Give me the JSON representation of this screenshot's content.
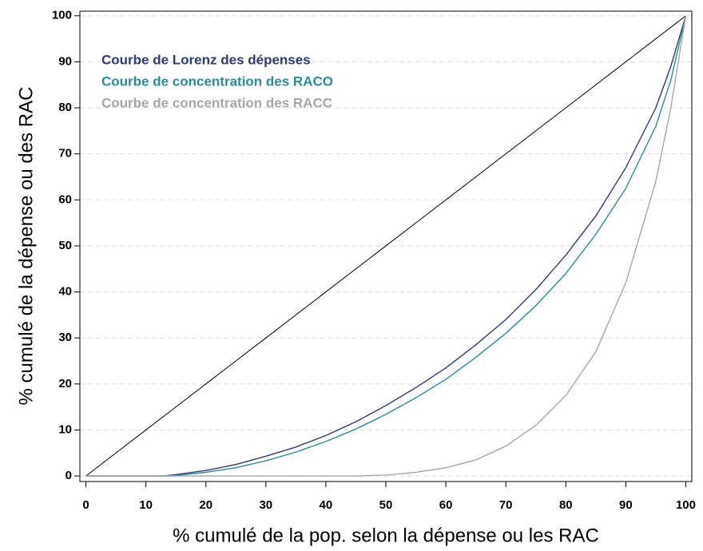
{
  "chart_data": {
    "type": "line",
    "xlabel": "% cumulé de la pop. selon la dépense ou les RAC",
    "ylabel": "% cumulé de la dépense ou des RAC",
    "x": [
      0,
      5,
      10,
      13,
      15,
      20,
      25,
      30,
      35,
      40,
      45,
      50,
      55,
      60,
      65,
      70,
      75,
      80,
      85,
      90,
      95,
      97.5,
      100
    ],
    "series": [
      {
        "color": "#000000",
        "values": [
          0,
          5,
          10,
          13,
          15,
          20,
          25,
          30,
          35,
          40,
          45,
          50,
          55,
          60,
          65,
          70,
          75,
          80,
          85,
          90,
          95,
          97.5,
          100
        ]
      },
      {
        "name": "Courbe de Lorenz des dépenses",
        "color": "#2e3a7a",
        "values": [
          0,
          0,
          0,
          0,
          0.3,
          1.2,
          2.5,
          4.3,
          6.3,
          8.8,
          11.8,
          15.3,
          19.2,
          23.5,
          28.5,
          34,
          40.5,
          48,
          56.5,
          67,
          80,
          89,
          100
        ]
      },
      {
        "name": "Courbe de concentration des RACO",
        "color": "#2a8c9a",
        "values": [
          0,
          0,
          0,
          0,
          0.1,
          0.8,
          1.8,
          3.3,
          5.2,
          7.5,
          10.2,
          13.4,
          17,
          21,
          25.8,
          31,
          37,
          44,
          52.5,
          62.5,
          76,
          86,
          100
        ]
      },
      {
        "name": "Courbe de concentration des RACC",
        "color": "#a6a6a6",
        "values": [
          0,
          0,
          0,
          0,
          0,
          0,
          0,
          0,
          0,
          0,
          0,
          0.2,
          0.8,
          1.8,
          3.5,
          6.5,
          11,
          17.5,
          27,
          42,
          64,
          80,
          100
        ]
      }
    ],
    "xlim": [
      -1,
      101
    ],
    "ylim": [
      -1.2,
      101
    ],
    "xticks": [
      0,
      10,
      20,
      30,
      40,
      50,
      60,
      70,
      80,
      90,
      100
    ],
    "yticks": [
      0,
      10,
      20,
      30,
      40,
      50,
      60,
      70,
      80,
      90,
      100
    ],
    "grid": true,
    "legend": "upper left"
  }
}
